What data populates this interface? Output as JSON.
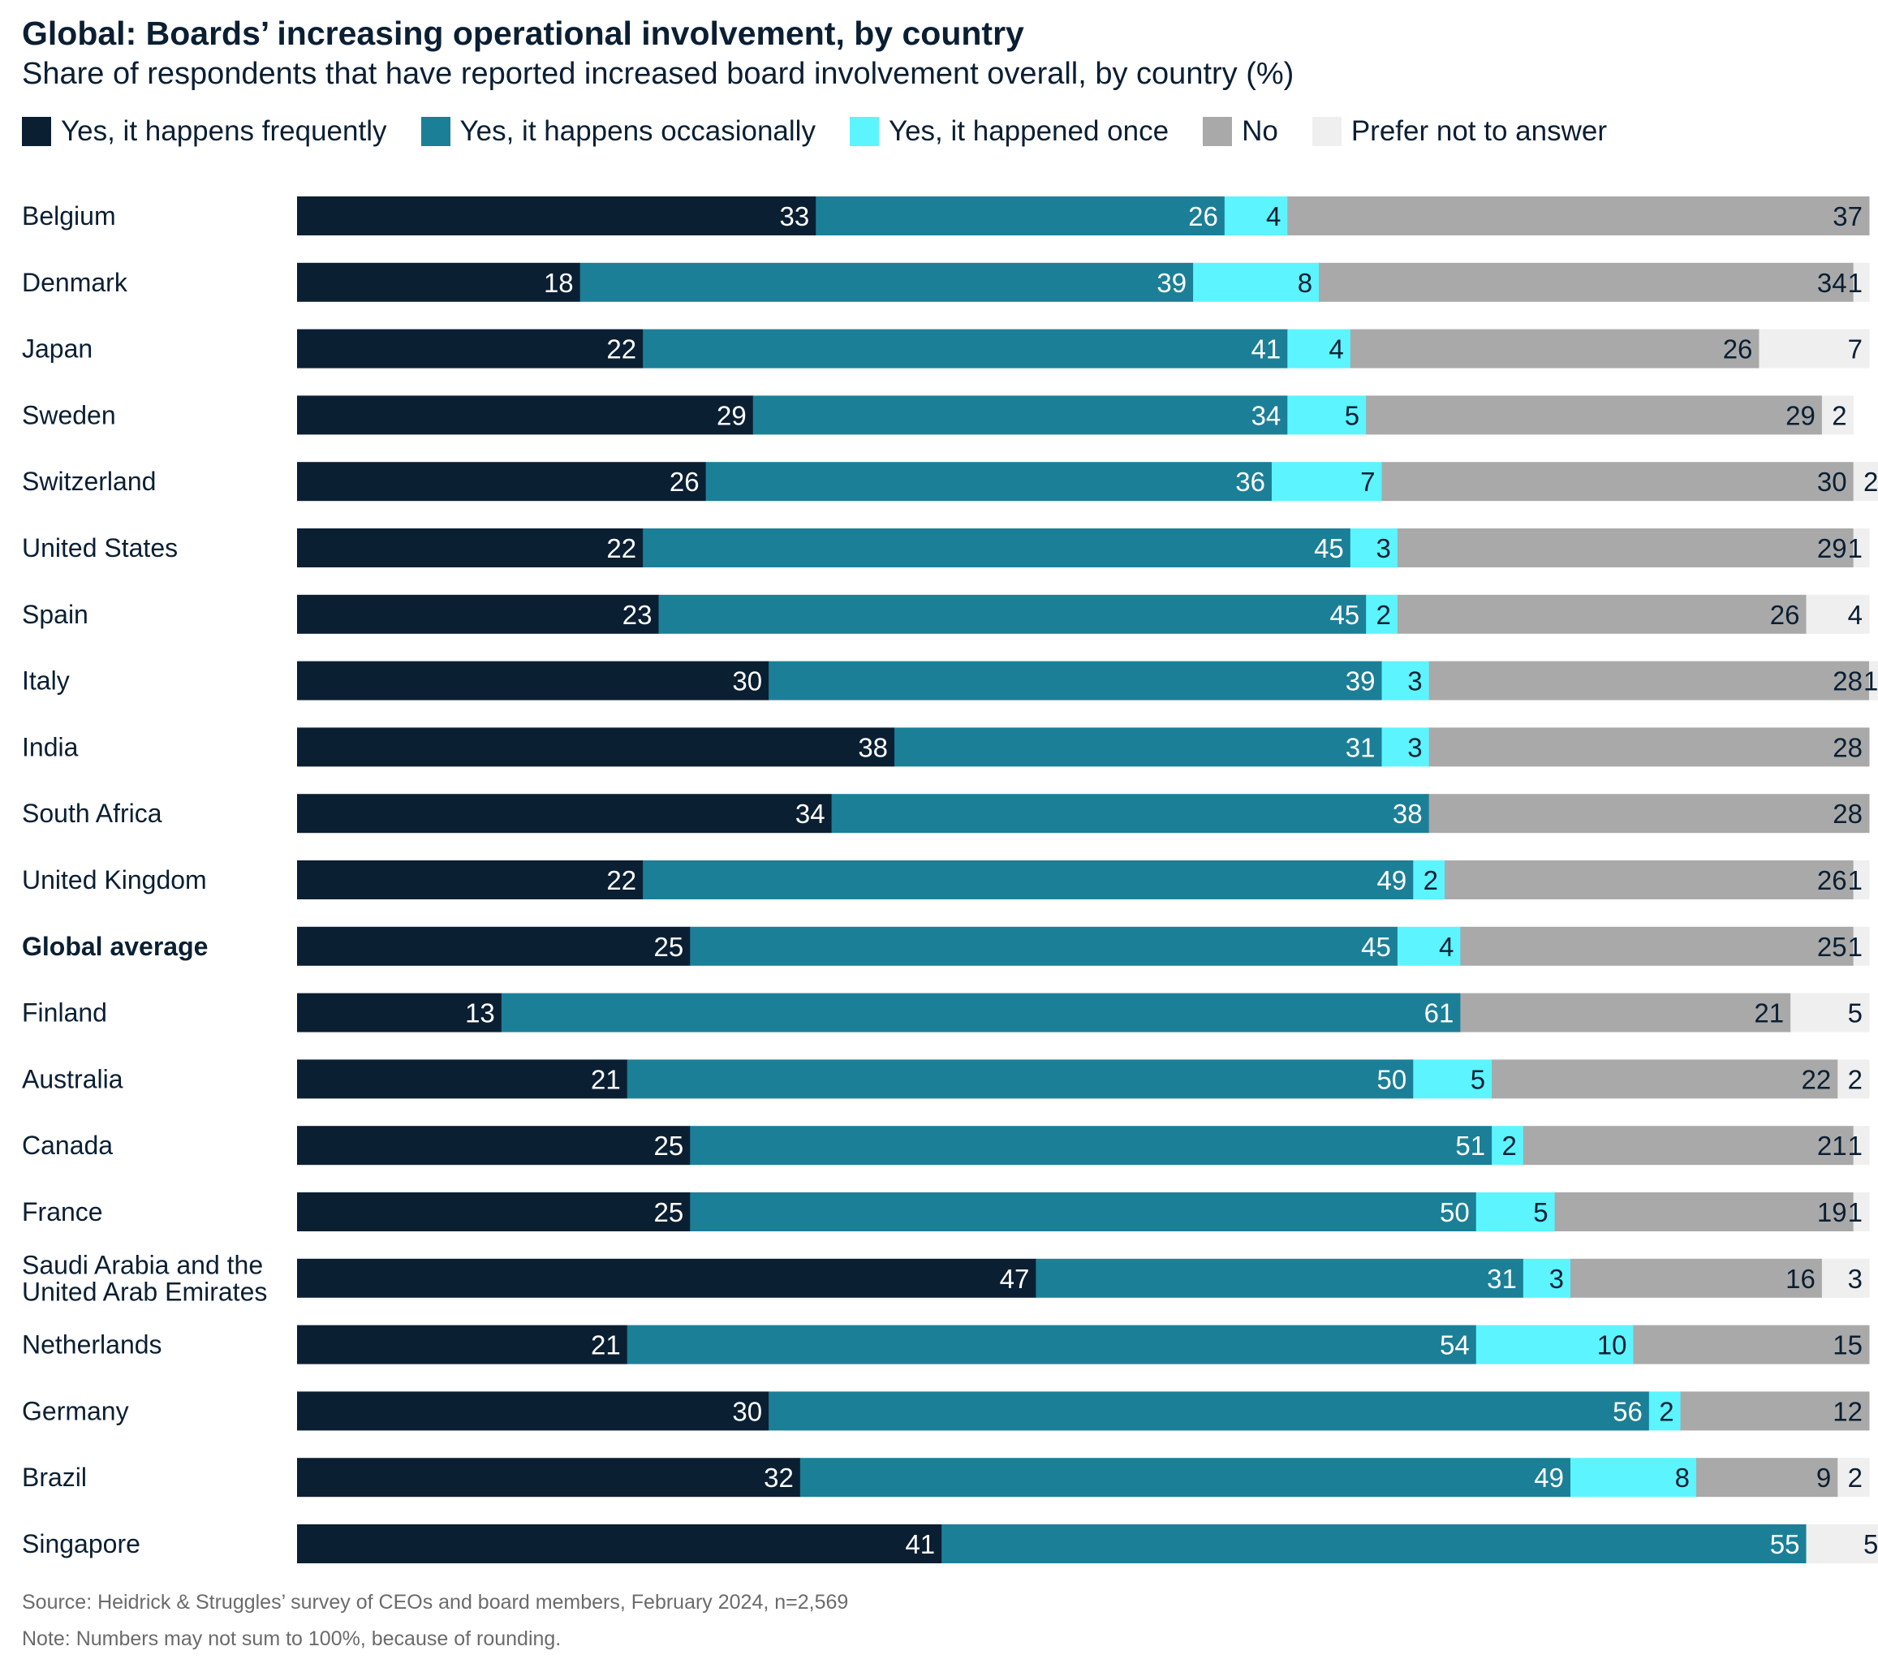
{
  "chart_data": {
    "type": "bar",
    "orientation": "horizontal",
    "stacked": true,
    "title": "Global: Boards’ increasing operational involvement, by country",
    "subtitle": "Share of respondents that have reported increased board involvement overall, by country (%)",
    "xlabel": "",
    "ylabel": "",
    "xlim": [
      0,
      100
    ],
    "legend_position": "top-left",
    "grid": false,
    "bold_categories": [
      "Global average"
    ],
    "categories": [
      "Belgium",
      "Denmark",
      "Japan",
      "Sweden",
      "Switzerland",
      "United States",
      "Spain",
      "Italy",
      "India",
      "South Africa",
      "United Kingdom",
      "Global average",
      "Finland",
      "Australia",
      "Canada",
      "France",
      "Saudi Arabia and the United Arab Emirates",
      "Netherlands",
      "Germany",
      "Brazil",
      "Singapore"
    ],
    "category_lines": [
      [
        "Belgium"
      ],
      [
        "Denmark"
      ],
      [
        "Japan"
      ],
      [
        "Sweden"
      ],
      [
        "Switzerland"
      ],
      [
        "United States"
      ],
      [
        "Spain"
      ],
      [
        "Italy"
      ],
      [
        "India"
      ],
      [
        "South Africa"
      ],
      [
        "United Kingdom"
      ],
      [
        "Global average"
      ],
      [
        "Finland"
      ],
      [
        "Australia"
      ],
      [
        "Canada"
      ],
      [
        "France"
      ],
      [
        "Saudi Arabia and the",
        "United Arab Emirates"
      ],
      [
        "Netherlands"
      ],
      [
        "Germany"
      ],
      [
        "Brazil"
      ],
      [
        "Singapore"
      ]
    ],
    "series": [
      {
        "name": "Yes, it happens frequently",
        "color": "#0b1f33",
        "label_color": "#ffffff",
        "values": [
          33,
          18,
          22,
          29,
          26,
          22,
          23,
          30,
          38,
          34,
          22,
          25,
          13,
          21,
          25,
          25,
          47,
          21,
          30,
          32,
          41
        ]
      },
      {
        "name": "Yes, it happens occasionally",
        "color": "#1b7f97",
        "label_color": "#ffffff",
        "values": [
          26,
          39,
          41,
          34,
          36,
          45,
          45,
          39,
          31,
          38,
          49,
          45,
          61,
          50,
          51,
          50,
          31,
          54,
          56,
          49,
          55
        ]
      },
      {
        "name": "Yes, it happened once",
        "color": "#5cf4ff",
        "label_color": "#0b1f33",
        "values": [
          4,
          8,
          4,
          5,
          7,
          3,
          2,
          3,
          3,
          0,
          2,
          4,
          0,
          5,
          2,
          5,
          3,
          10,
          2,
          8,
          0
        ]
      },
      {
        "name": "No",
        "color": "#a9a9a9",
        "label_color": "#0b1f33",
        "values": [
          37,
          34,
          26,
          29,
          30,
          29,
          26,
          28,
          28,
          28,
          26,
          25,
          21,
          22,
          21,
          19,
          16,
          15,
          12,
          9,
          0
        ]
      },
      {
        "name": "Prefer not to answer",
        "color": "#efefef",
        "label_color": "#0b1f33",
        "values": [
          0,
          1,
          7,
          2,
          2,
          1,
          4,
          1,
          0,
          0,
          1,
          1,
          5,
          2,
          1,
          1,
          3,
          0,
          0,
          2,
          5
        ]
      }
    ]
  },
  "notes": {
    "source": "Source: Heidrick & Struggles’ survey of CEOs and board members, February 2024, n=2,569",
    "rounding": "Note: Numbers may not sum to 100%, because of rounding."
  }
}
